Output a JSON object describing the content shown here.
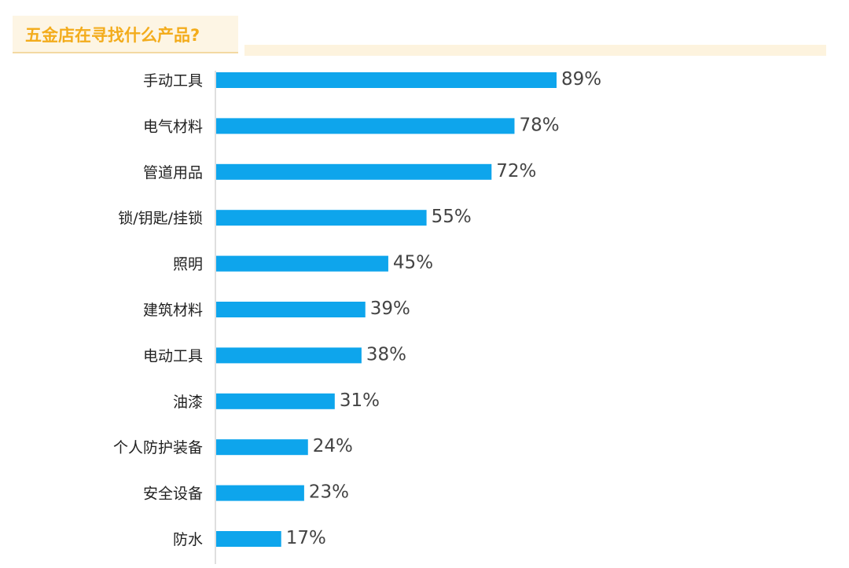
{
  "title": "五金店在寻找什么产品?",
  "chart_data": {
    "type": "bar",
    "orientation": "horizontal",
    "title": "五金店在寻找什么产品?",
    "categories": [
      "手动工具",
      "电气材料",
      "管道用品",
      "锁/钥匙/挂锁",
      "照明",
      "建筑材料",
      "电动工具",
      "油漆",
      "个人防护装备",
      "安全设备",
      "防水"
    ],
    "values": [
      89,
      78,
      72,
      55,
      45,
      39,
      38,
      31,
      24,
      23,
      17
    ],
    "value_labels": [
      "89%",
      "78%",
      "72%",
      "55%",
      "45%",
      "39%",
      "38%",
      "31%",
      "24%",
      "23%",
      "17%"
    ],
    "unit": "%",
    "xlim": [
      0,
      100
    ],
    "grid": false,
    "legend": "none",
    "bar_color": "#0ea5ec",
    "title_color": "#f3ac1c"
  }
}
